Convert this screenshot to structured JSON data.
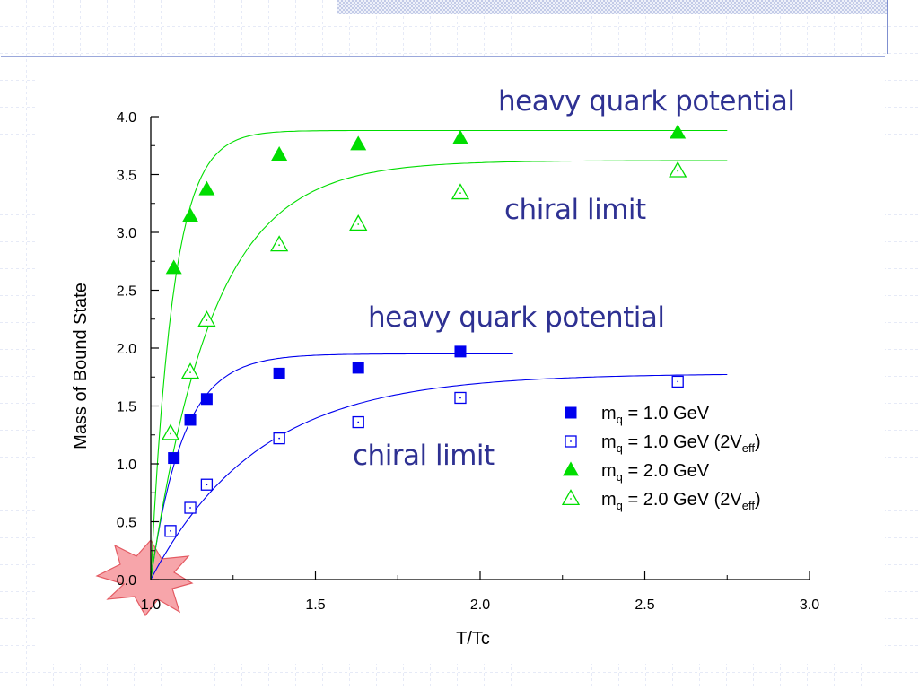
{
  "colors": {
    "green": "#00dd00",
    "blue": "#0000ee",
    "annotation": "#2e3192",
    "accent_bar": "#7f8fcf",
    "grid": "#c9d1ee",
    "starburst": "#f47a80"
  },
  "annotations": {
    "top_heavy": "heavy quark potential",
    "top_chiral": "chiral limit",
    "mid_heavy": "heavy quark potential",
    "bottom_chiral": "chiral limit"
  },
  "chart_data": {
    "type": "scatter",
    "title": "",
    "xlabel": "T/Tc",
    "ylabel": "Mass of Bound State",
    "xlim": [
      1.0,
      3.0
    ],
    "ylim": [
      0.0,
      4.0
    ],
    "xticks": [
      "1.0",
      "1.5",
      "2.0",
      "2.5",
      "3.0"
    ],
    "yticks": [
      "0.0",
      "0.5",
      "1.0",
      "1.5",
      "2.0",
      "2.5",
      "3.0",
      "3.5",
      "4.0"
    ],
    "legend_position": "lower-right",
    "grid": false,
    "series": [
      {
        "name": "m_q = 1.0 GeV",
        "legend_main": "m",
        "legend_sub": "q",
        "legend_rest": " = 1.0 GeV",
        "legend_tail_sub": "",
        "legend_end": "",
        "marker": "square-filled",
        "color": "#0000ee",
        "x": [
          1.07,
          1.12,
          1.17,
          1.39,
          1.63,
          1.94
        ],
        "y": [
          1.05,
          1.38,
          1.56,
          1.78,
          1.83,
          1.97
        ],
        "fit_end": 2.1,
        "fit_asymptote": 1.95
      },
      {
        "name": "m_q = 1.0 GeV (2V_eff)",
        "legend_main": "m",
        "legend_sub": "q",
        "legend_rest": " = 1.0 GeV (2V",
        "legend_tail_sub": "eff",
        "legend_end": ")",
        "marker": "square-open",
        "color": "#0000ee",
        "x": [
          1.06,
          1.12,
          1.17,
          1.39,
          1.63,
          1.94,
          2.6
        ],
        "y": [
          0.42,
          0.62,
          0.82,
          1.22,
          1.36,
          1.57,
          1.71
        ],
        "fit_end": 2.75,
        "fit_asymptote": 1.78
      },
      {
        "name": "m_q = 2.0 GeV",
        "legend_main": "m",
        "legend_sub": "q",
        "legend_rest": " = 2.0 GeV",
        "legend_tail_sub": "",
        "legend_end": "",
        "marker": "triangle-filled",
        "color": "#00dd00",
        "x": [
          1.07,
          1.12,
          1.17,
          1.39,
          1.63,
          1.94,
          2.6
        ],
        "y": [
          2.69,
          3.14,
          3.37,
          3.67,
          3.76,
          3.81,
          3.86
        ],
        "fit_end": 2.75,
        "fit_asymptote": 3.88
      },
      {
        "name": "m_q = 2.0 GeV (2V_eff)",
        "legend_main": "m",
        "legend_sub": "q",
        "legend_rest": " = 2.0 GeV (2V",
        "legend_tail_sub": "eff",
        "legend_end": ")",
        "marker": "triangle-open",
        "color": "#00dd00",
        "x": [
          1.06,
          1.12,
          1.17,
          1.39,
          1.63,
          1.94,
          2.6
        ],
        "y": [
          1.26,
          1.79,
          2.24,
          2.89,
          3.07,
          3.34,
          3.53
        ],
        "fit_end": 2.75,
        "fit_asymptote": 3.62
      }
    ]
  }
}
